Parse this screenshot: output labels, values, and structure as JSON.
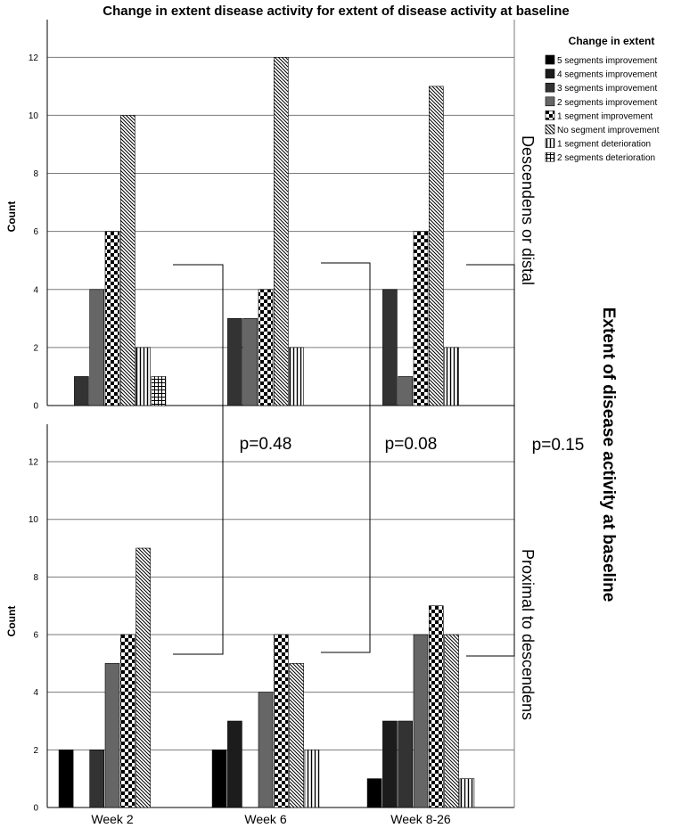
{
  "chart_data": {
    "type": "bar",
    "title": "Change in extent disease activity for extent of disease activity at baseline",
    "ylabel": "Count",
    "ylim": [
      0,
      13.3
    ],
    "yticks": [
      0,
      2,
      4,
      6,
      8,
      10,
      12
    ],
    "categories": [
      "Week 2",
      "Week 6",
      "Week 8-26"
    ],
    "facet_title": "Extent of disease activity at baseline",
    "legend": {
      "title": "Change in extent",
      "items": [
        {
          "label": "5 segments improvement",
          "pattern": "solid-black"
        },
        {
          "label": "4 segments improvement",
          "pattern": "solid-darkgray1"
        },
        {
          "label": "3 segments improvement",
          "pattern": "solid-darkgray2"
        },
        {
          "label": "2 segments improvement",
          "pattern": "solid-gray"
        },
        {
          "label": "1 segment improvement",
          "pattern": "checker"
        },
        {
          "label": "No segment improvement",
          "pattern": "diagonal"
        },
        {
          "label": "1 segment deterioration",
          "pattern": "vertical"
        },
        {
          "label": "2 segments deterioration",
          "pattern": "crosshatch"
        }
      ]
    },
    "panels": [
      {
        "label": "Descendens or distal",
        "values": [
          [
            0,
            1,
            4,
            6,
            10,
            2,
            1
          ],
          [
            0,
            3,
            3,
            4,
            12,
            2,
            0
          ],
          [
            0,
            4,
            1,
            6,
            11,
            2,
            0
          ]
        ],
        "series_order": [
          1,
          2,
          3,
          4,
          5,
          6,
          7
        ]
      },
      {
        "label": "Proximal to descendens",
        "values": [
          [
            2,
            0,
            2,
            5,
            6,
            9,
            0
          ],
          [
            2,
            3,
            0,
            4,
            6,
            5,
            2
          ],
          [
            1,
            3,
            3,
            6,
            7,
            6,
            1
          ]
        ],
        "series_order": [
          0,
          1,
          2,
          3,
          4,
          5,
          6
        ]
      }
    ],
    "p_values": [
      "p=0.48",
      "p=0.08",
      "p=0.15"
    ]
  }
}
